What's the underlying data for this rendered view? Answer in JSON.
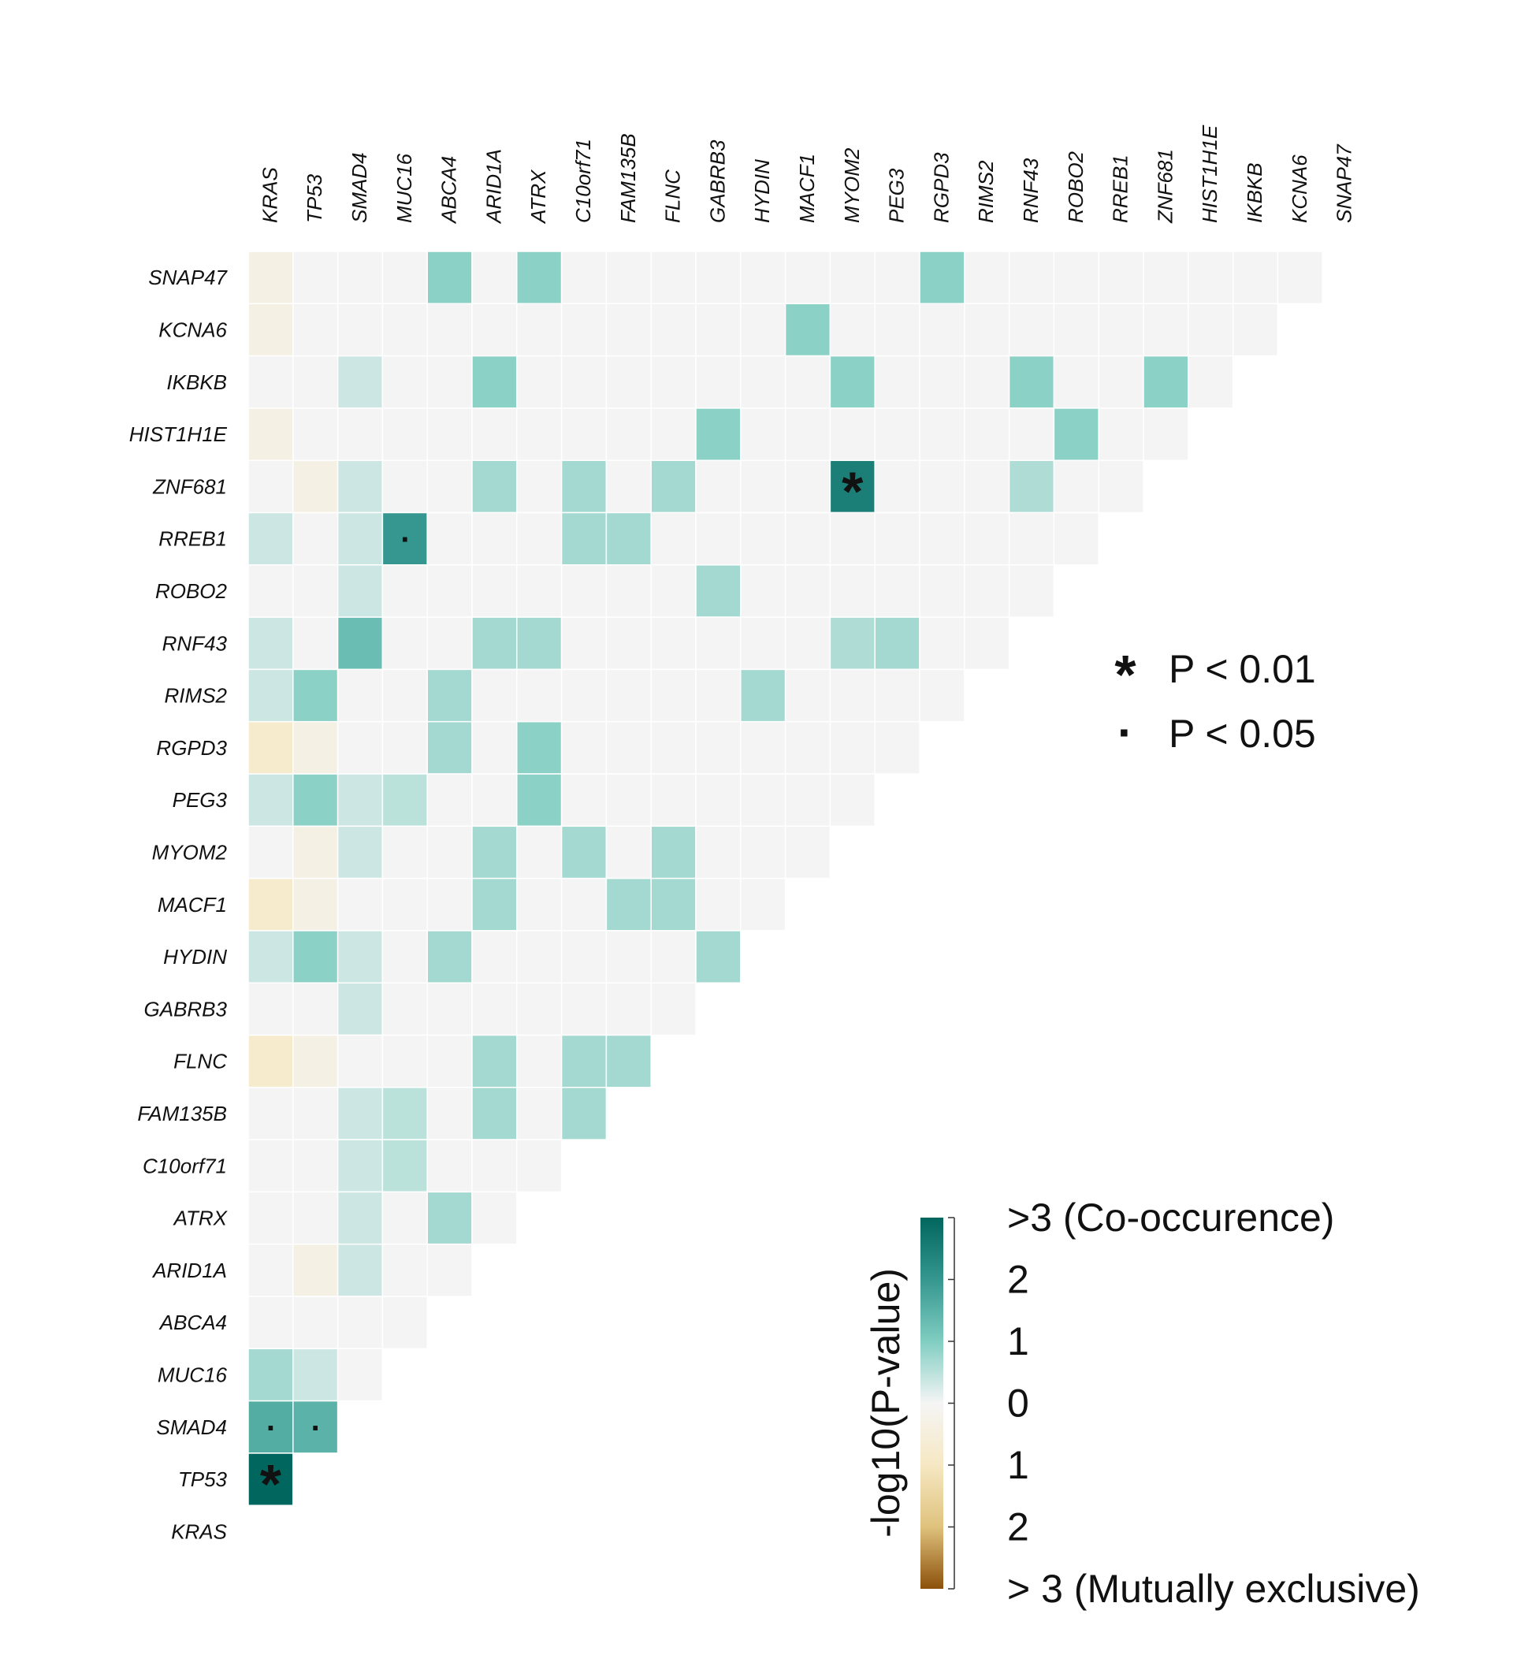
{
  "chart_data": {
    "type": "heatmap",
    "genes": [
      "KRAS",
      "TP53",
      "SMAD4",
      "MUC16",
      "ABCA4",
      "ARID1A",
      "ATRX",
      "C10orf71",
      "FAM135B",
      "FLNC",
      "GABRB3",
      "HYDIN",
      "MACF1",
      "MYOM2",
      "PEG3",
      "RGPD3",
      "RIMS2",
      "RNF43",
      "ROBO2",
      "RREB1",
      "ZNF681",
      "HIST1H1E",
      "IKBKB",
      "KCNA6",
      "SNAP47"
    ],
    "value_scale": "-log10(P-value); positive = co-occurrence, negative = mutual exclusivity",
    "rows": {
      "TP53": [
        3.0
      ],
      "SMAD4": [
        1.6,
        1.5
      ],
      "MUC16": [
        0.7,
        0.35,
        0.0
      ],
      "ABCA4": [
        0.0,
        0.0,
        0.0,
        0.0
      ],
      "ARID1A": [
        0.0,
        -0.35,
        0.35,
        0.0,
        0.0
      ],
      "ATRX": [
        0.0,
        0.0,
        0.35,
        0.0,
        0.7,
        0.0
      ],
      "C10orf71": [
        0.0,
        0.0,
        0.35,
        0.5,
        0.0,
        0.0,
        0.0
      ],
      "FAM135B": [
        0.0,
        0.0,
        0.35,
        0.5,
        0.0,
        0.7,
        0.0,
        0.7
      ],
      "FLNC": [
        -0.8,
        -0.35,
        0.0,
        0.0,
        0.0,
        0.7,
        0.0,
        0.7,
        0.7
      ],
      "GABRB3": [
        0.0,
        0.0,
        0.35,
        0.0,
        0.0,
        0.0,
        0.0,
        0.0,
        0.0,
        0.0
      ],
      "HYDIN": [
        0.35,
        0.9,
        0.35,
        0.0,
        0.7,
        0.0,
        0.0,
        0.0,
        0.0,
        0.0,
        0.7
      ],
      "MACF1": [
        -0.8,
        -0.35,
        0.0,
        0.0,
        0.0,
        0.7,
        0.0,
        0.0,
        0.7,
        0.7,
        0.0,
        0.0
      ],
      "MYOM2": [
        0.0,
        -0.35,
        0.35,
        0.0,
        0.0,
        0.7,
        0.0,
        0.7,
        0.0,
        0.7,
        0.0,
        0.0,
        0.0
      ],
      "PEG3": [
        0.35,
        0.9,
        0.35,
        0.5,
        0.0,
        0.0,
        0.9,
        0.0,
        0.0,
        0.0,
        0.0,
        0.0,
        0.0,
        0.0
      ],
      "RGPD3": [
        -0.8,
        -0.35,
        0.0,
        0.0,
        0.7,
        0.0,
        0.9,
        0.0,
        0.0,
        0.0,
        0.0,
        0.0,
        0.0,
        0.0,
        0.0
      ],
      "RIMS2": [
        0.35,
        0.9,
        0.0,
        0.0,
        0.7,
        0.0,
        0.0,
        0.0,
        0.0,
        0.0,
        0.0,
        0.7,
        0.0,
        0.0,
        0.0,
        0.0
      ],
      "RNF43": [
        0.35,
        0.0,
        1.3,
        0.0,
        0.0,
        0.7,
        0.7,
        0.0,
        0.0,
        0.0,
        0.0,
        0.0,
        0.0,
        0.6,
        0.7,
        0.0,
        0.0
      ],
      "ROBO2": [
        0.0,
        0.0,
        0.35,
        0.0,
        0.0,
        0.0,
        0.0,
        0.0,
        0.0,
        0.0,
        0.7,
        0.0,
        0.0,
        0.0,
        0.0,
        0.0,
        0.0,
        0.0
      ],
      "RREB1": [
        0.35,
        0.0,
        0.35,
        2.0,
        0.0,
        0.0,
        0.0,
        0.7,
        0.7,
        0.0,
        0.0,
        0.0,
        0.0,
        0.0,
        0.0,
        0.0,
        0.0,
        0.0,
        0.0
      ],
      "ZNF681": [
        0.0,
        -0.35,
        0.35,
        0.0,
        0.0,
        0.7,
        0.0,
        0.7,
        0.0,
        0.7,
        0.0,
        0.0,
        0.0,
        2.5,
        0.0,
        0.0,
        0.0,
        0.6,
        0.0,
        0.0
      ],
      "HIST1H1E": [
        -0.35,
        0.0,
        0.0,
        0.0,
        0.0,
        0.0,
        0.0,
        0.0,
        0.0,
        0.0,
        0.9,
        0.0,
        0.0,
        0.0,
        0.0,
        0.0,
        0.0,
        0.0,
        0.9,
        0.0,
        0.0
      ],
      "IKBKB": [
        0.0,
        0.0,
        0.35,
        0.0,
        0.0,
        0.9,
        0.0,
        0.0,
        0.0,
        0.0,
        0.0,
        0.0,
        0.0,
        0.9,
        0.0,
        0.0,
        0.0,
        0.9,
        0.0,
        0.0,
        0.9,
        0.0
      ],
      "KCNA6": [
        -0.35,
        0.0,
        0.0,
        0.0,
        0.0,
        0.0,
        0.0,
        0.0,
        0.0,
        0.0,
        0.0,
        0.0,
        0.9,
        0.0,
        0.0,
        0.0,
        0.0,
        0.0,
        0.0,
        0.0,
        0.0,
        0.0,
        0.0
      ],
      "SNAP47": [
        -0.35,
        0.0,
        0.0,
        0.0,
        0.9,
        0.0,
        0.9,
        0.0,
        0.0,
        0.0,
        0.0,
        0.0,
        0.0,
        0.0,
        0.0,
        0.9,
        0.0,
        0.0,
        0.0,
        0.0,
        0.0,
        0.0,
        0.0,
        0.0
      ]
    },
    "significance": [
      {
        "row": "TP53",
        "col": "KRAS",
        "mark": "*"
      },
      {
        "row": "SMAD4",
        "col": "KRAS",
        "mark": "."
      },
      {
        "row": "SMAD4",
        "col": "TP53",
        "mark": "."
      },
      {
        "row": "RREB1",
        "col": "MUC16",
        "mark": "."
      },
      {
        "row": "ZNF681",
        "col": "MYOM2",
        "mark": "*"
      }
    ],
    "significance_legend": [
      {
        "symbol": "*",
        "label": "P < 0.01"
      },
      {
        "symbol": "·",
        "label": "P < 0.05"
      }
    ],
    "colorbar": {
      "title": "-log10(P-value)",
      "range": [
        -3,
        3
      ],
      "tick_labels": [
        {
          "value": 3,
          "label": ">3 (Co-occurence)"
        },
        {
          "value": 2,
          "label": "2"
        },
        {
          "value": 1,
          "label": "1"
        },
        {
          "value": 0,
          "label": "0"
        },
        {
          "value": -1,
          "label": "1"
        },
        {
          "value": -2,
          "label": "2"
        },
        {
          "value": -3,
          "label": "> 3 (Mutually exclusive)"
        }
      ],
      "colors": {
        "co_occurrence": "#01665e",
        "mid": "#f5f5f5",
        "exclusive": "#8c510a"
      }
    },
    "grid_empty_color": "#f4f4f4"
  }
}
